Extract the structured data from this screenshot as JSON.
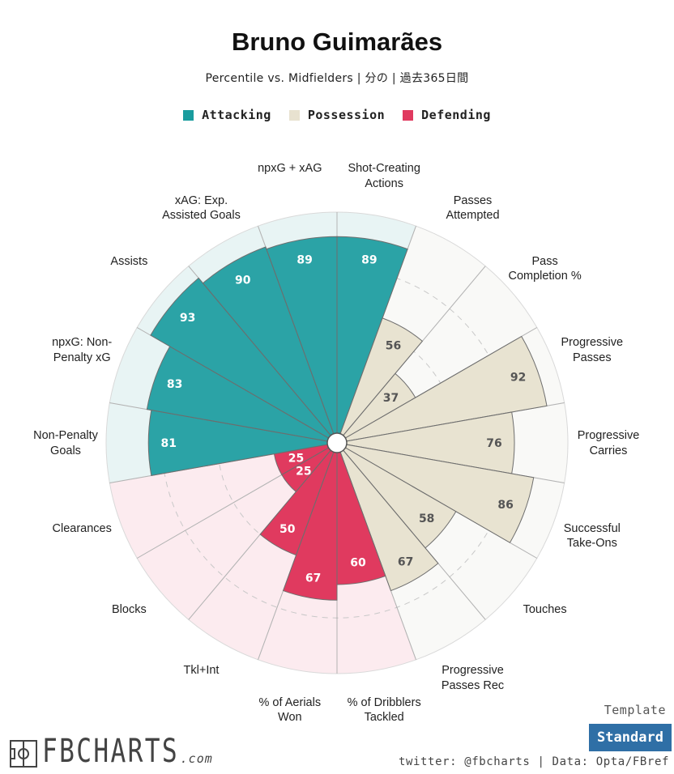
{
  "title": "Bruno Guimarães",
  "subtitle": "Percentile vs. Midfielders | 分の | 過去365日間",
  "legend": [
    {
      "label": "Attacking",
      "color": "#1a9c9e"
    },
    {
      "label": "Possession",
      "color": "#e8e2d0"
    },
    {
      "label": "Defending",
      "color": "#e03a5f"
    }
  ],
  "chart_data": {
    "type": "pie",
    "subtype": "polar-bar",
    "ylim": [
      0,
      100
    ],
    "grid": true,
    "start_at": "top, clockwise",
    "categories": [
      "Shot-Creating\nActions",
      "Passes\nAttempted",
      "Pass\nCompletion %",
      "Progressive\nPasses",
      "Progressive\nCarries",
      "Successful\nTake-Ons",
      "Touches",
      "Progressive\nPasses Rec",
      "% of Dribblers\nTackled",
      "% of Aerials\nWon",
      "Tkl+Int",
      "Blocks",
      "Clearances",
      "Non-Penalty\nGoals",
      "npxG: Non-\nPenalty xG",
      "Assists",
      "xAG: Exp.\nAssisted Goals",
      "npxG + xAG"
    ],
    "values": [
      89,
      56,
      37,
      92,
      76,
      86,
      58,
      67,
      60,
      67,
      50,
      25,
      25,
      81,
      83,
      93,
      90,
      89
    ],
    "groups": [
      "Attacking",
      "Possession",
      "Possession",
      "Possession",
      "Possession",
      "Possession",
      "Possession",
      "Possession",
      "Defending",
      "Defending",
      "Defending",
      "Defending",
      "Defending",
      "Attacking",
      "Attacking",
      "Attacking",
      "Attacking",
      "Attacking"
    ],
    "colors": {
      "Attacking": {
        "bar": "#2ba3a6",
        "bg": "#e8f4f4",
        "text": "#ffffff"
      },
      "Possession": {
        "bar": "#e8e3d1",
        "bg": "#f9f9f7",
        "text": "#555555"
      },
      "Defending": {
        "bar": "#e03a5f",
        "bg": "#fcebef",
        "text": "#ffffff"
      }
    }
  },
  "template": {
    "label": "Template",
    "value": "Standard"
  },
  "credits": "twitter: @fbcharts | Data: Opta/FBref",
  "logo": {
    "text": "FBCHARTS",
    "suffix": ".com"
  }
}
